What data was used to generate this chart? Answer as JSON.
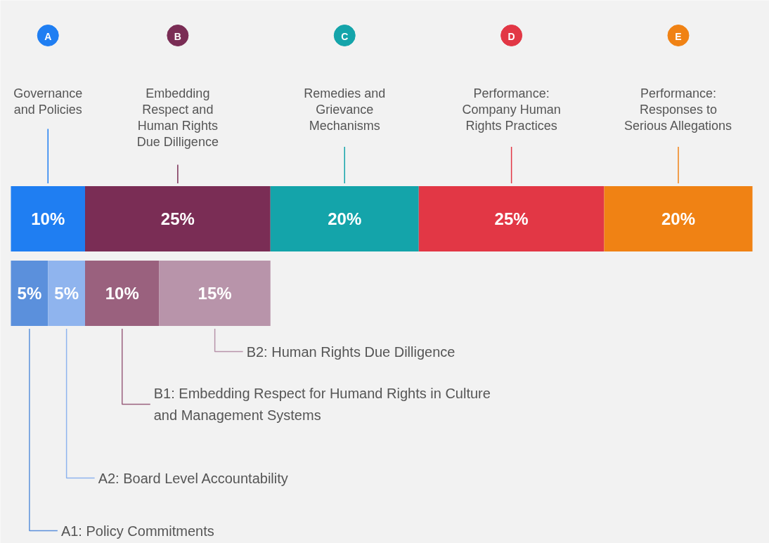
{
  "chart_data": {
    "type": "bar",
    "orientation": "horizontal",
    "stacked": true,
    "categories": [
      null,
      null
    ],
    "tick_labels": false,
    "grid": false,
    "annotations": [
      "A",
      "B",
      "C",
      "D",
      "E"
    ],
    "series": [
      {
        "name": "Governance\nand Policies",
        "color": "#1f7ef2",
        "values": [
          10,
          null
        ],
        "value_labels": [
          "10%",
          null
        ]
      },
      {
        "name": "Embedding\nRespect and\nHuman Rights\nDue Dilligence",
        "color": "#7a2d55",
        "values": [
          25,
          null
        ],
        "value_labels": [
          "25%",
          null
        ]
      },
      {
        "name": "Remedies and\nGrievance\nMechanisms",
        "color": "#14a4aa",
        "values": [
          20,
          null
        ],
        "value_labels": [
          "20%",
          null
        ]
      },
      {
        "name": "Performance:\nCompany Human\nRights Practices",
        "color": "#e23745",
        "values": [
          25,
          null
        ],
        "value_labels": [
          "25%",
          null
        ]
      },
      {
        "name": "Performance:\nResponses to\nSerious Allegations",
        "color": "#f08214",
        "values": [
          20,
          null
        ],
        "value_labels": [
          "20%",
          null
        ]
      },
      {
        "name": "A1: Policy Commitments",
        "color": "#5b90dc",
        "values": [
          null,
          5
        ],
        "value_labels": [
          null,
          "5%"
        ]
      },
      {
        "name": "A2: Board Level Accountability",
        "color": "#8fb4ee",
        "values": [
          null,
          5
        ],
        "value_labels": [
          null,
          "5%"
        ]
      },
      {
        "name": "B1: Embedding Respect for Humand Rights in Culture\nand Management Systems",
        "color": "#9a617e",
        "values": [
          null,
          10
        ],
        "value_labels": [
          null,
          "10%"
        ]
      },
      {
        "name": "B2: Human Rights Due Dilligence",
        "color": "#b894aa",
        "values": [
          null,
          15
        ],
        "value_labels": [
          null,
          "15%"
        ]
      }
    ]
  }
}
